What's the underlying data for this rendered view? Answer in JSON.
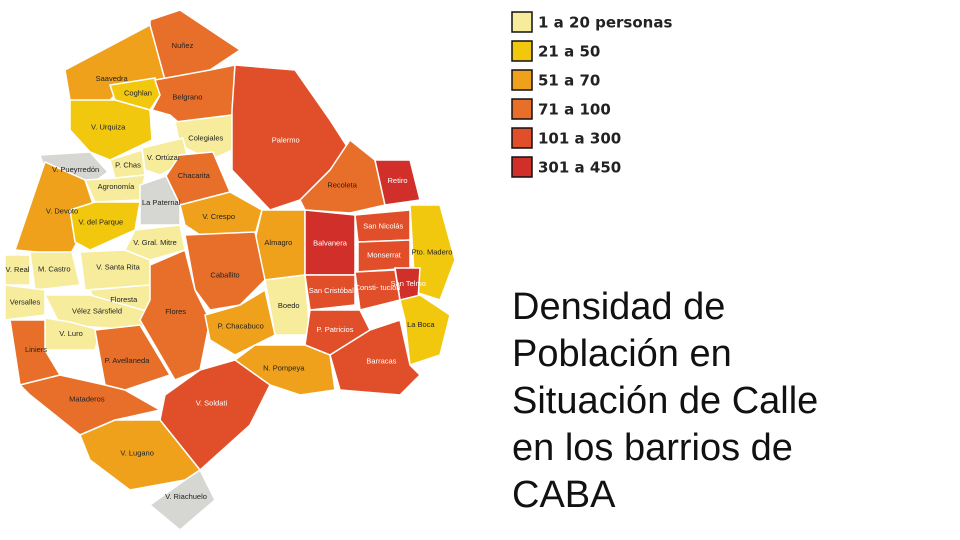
{
  "map": {
    "title": "Densidad de Población en Situación de Calle en los barrios de CABA",
    "no_data_color": "#d6d6d3",
    "legend": [
      {
        "label": "1 a 20 personas",
        "color": "#f6ec9c"
      },
      {
        "label": "21 a 50",
        "color": "#f2c80f"
      },
      {
        "label": "51 a 70",
        "color": "#efa11c"
      },
      {
        "label": "71 a 100",
        "color": "#e86f2a"
      },
      {
        "label": "101 a 300",
        "color": "#e04f2a"
      },
      {
        "label": "301 a 450",
        "color": "#d1302a"
      }
    ],
    "neighborhoods": [
      {
        "name": "Nuñez",
        "class": 3
      },
      {
        "name": "Saavedra",
        "class": 2
      },
      {
        "name": "Coghlan",
        "class": 1
      },
      {
        "name": "Belgrano",
        "class": 3
      },
      {
        "name": "V. Urquiza",
        "class": 1
      },
      {
        "name": "Colegiales",
        "class": 0
      },
      {
        "name": "Palermo",
        "class": 4
      },
      {
        "name": "V. Pueyrredón",
        "class": null
      },
      {
        "name": "Recoleta",
        "class": 3
      },
      {
        "name": "Retiro",
        "class": 5
      },
      {
        "name": "V. Ortúzar",
        "class": 0
      },
      {
        "name": "P. Chas",
        "class": 0
      },
      {
        "name": "Chacarita",
        "class": 3
      },
      {
        "name": "Agronomía",
        "class": 0
      },
      {
        "name": "La Paternal",
        "class": null
      },
      {
        "name": "V. Crespo",
        "class": 2
      },
      {
        "name": "V. Devoto",
        "class": 2
      },
      {
        "name": "V. del Parque",
        "class": 1
      },
      {
        "name": "V. Gral. Mitre",
        "class": 0
      },
      {
        "name": "Almagro",
        "class": 2
      },
      {
        "name": "Balvanera",
        "class": 5
      },
      {
        "name": "San Nicolás",
        "class": 4
      },
      {
        "name": "Pto. Madero",
        "class": 1
      },
      {
        "name": "Monserrat",
        "class": 4
      },
      {
        "name": "V. Real",
        "class": 0
      },
      {
        "name": "M. Castro",
        "class": 0
      },
      {
        "name": "V. Santa Rita",
        "class": 0
      },
      {
        "name": "Caballito",
        "class": 3
      },
      {
        "name": "San Cristóbal",
        "class": 4
      },
      {
        "name": "Consti- tución",
        "class": 4
      },
      {
        "name": "San Telmo",
        "class": 5
      },
      {
        "name": "Versalles",
        "class": 0
      },
      {
        "name": "Floresta",
        "class": 0
      },
      {
        "name": "Boedo",
        "class": 0
      },
      {
        "name": "Vélez Sársfield",
        "class": 0
      },
      {
        "name": "Flores",
        "class": 3
      },
      {
        "name": "P. Chacabuco",
        "class": 2
      },
      {
        "name": "La Boca",
        "class": 1
      },
      {
        "name": "V. Luro",
        "class": 0
      },
      {
        "name": "P. Patricios",
        "class": 4
      },
      {
        "name": "Liniers",
        "class": 3
      },
      {
        "name": "P. Avellaneda",
        "class": 3
      },
      {
        "name": "Barracas",
        "class": 4
      },
      {
        "name": "N. Pompeya",
        "class": 2
      },
      {
        "name": "Mataderos",
        "class": 3
      },
      {
        "name": "V. Soldati",
        "class": 4
      },
      {
        "name": "V. Lugano",
        "class": 2
      },
      {
        "name": "V. Riachuelo",
        "class": null
      }
    ]
  }
}
